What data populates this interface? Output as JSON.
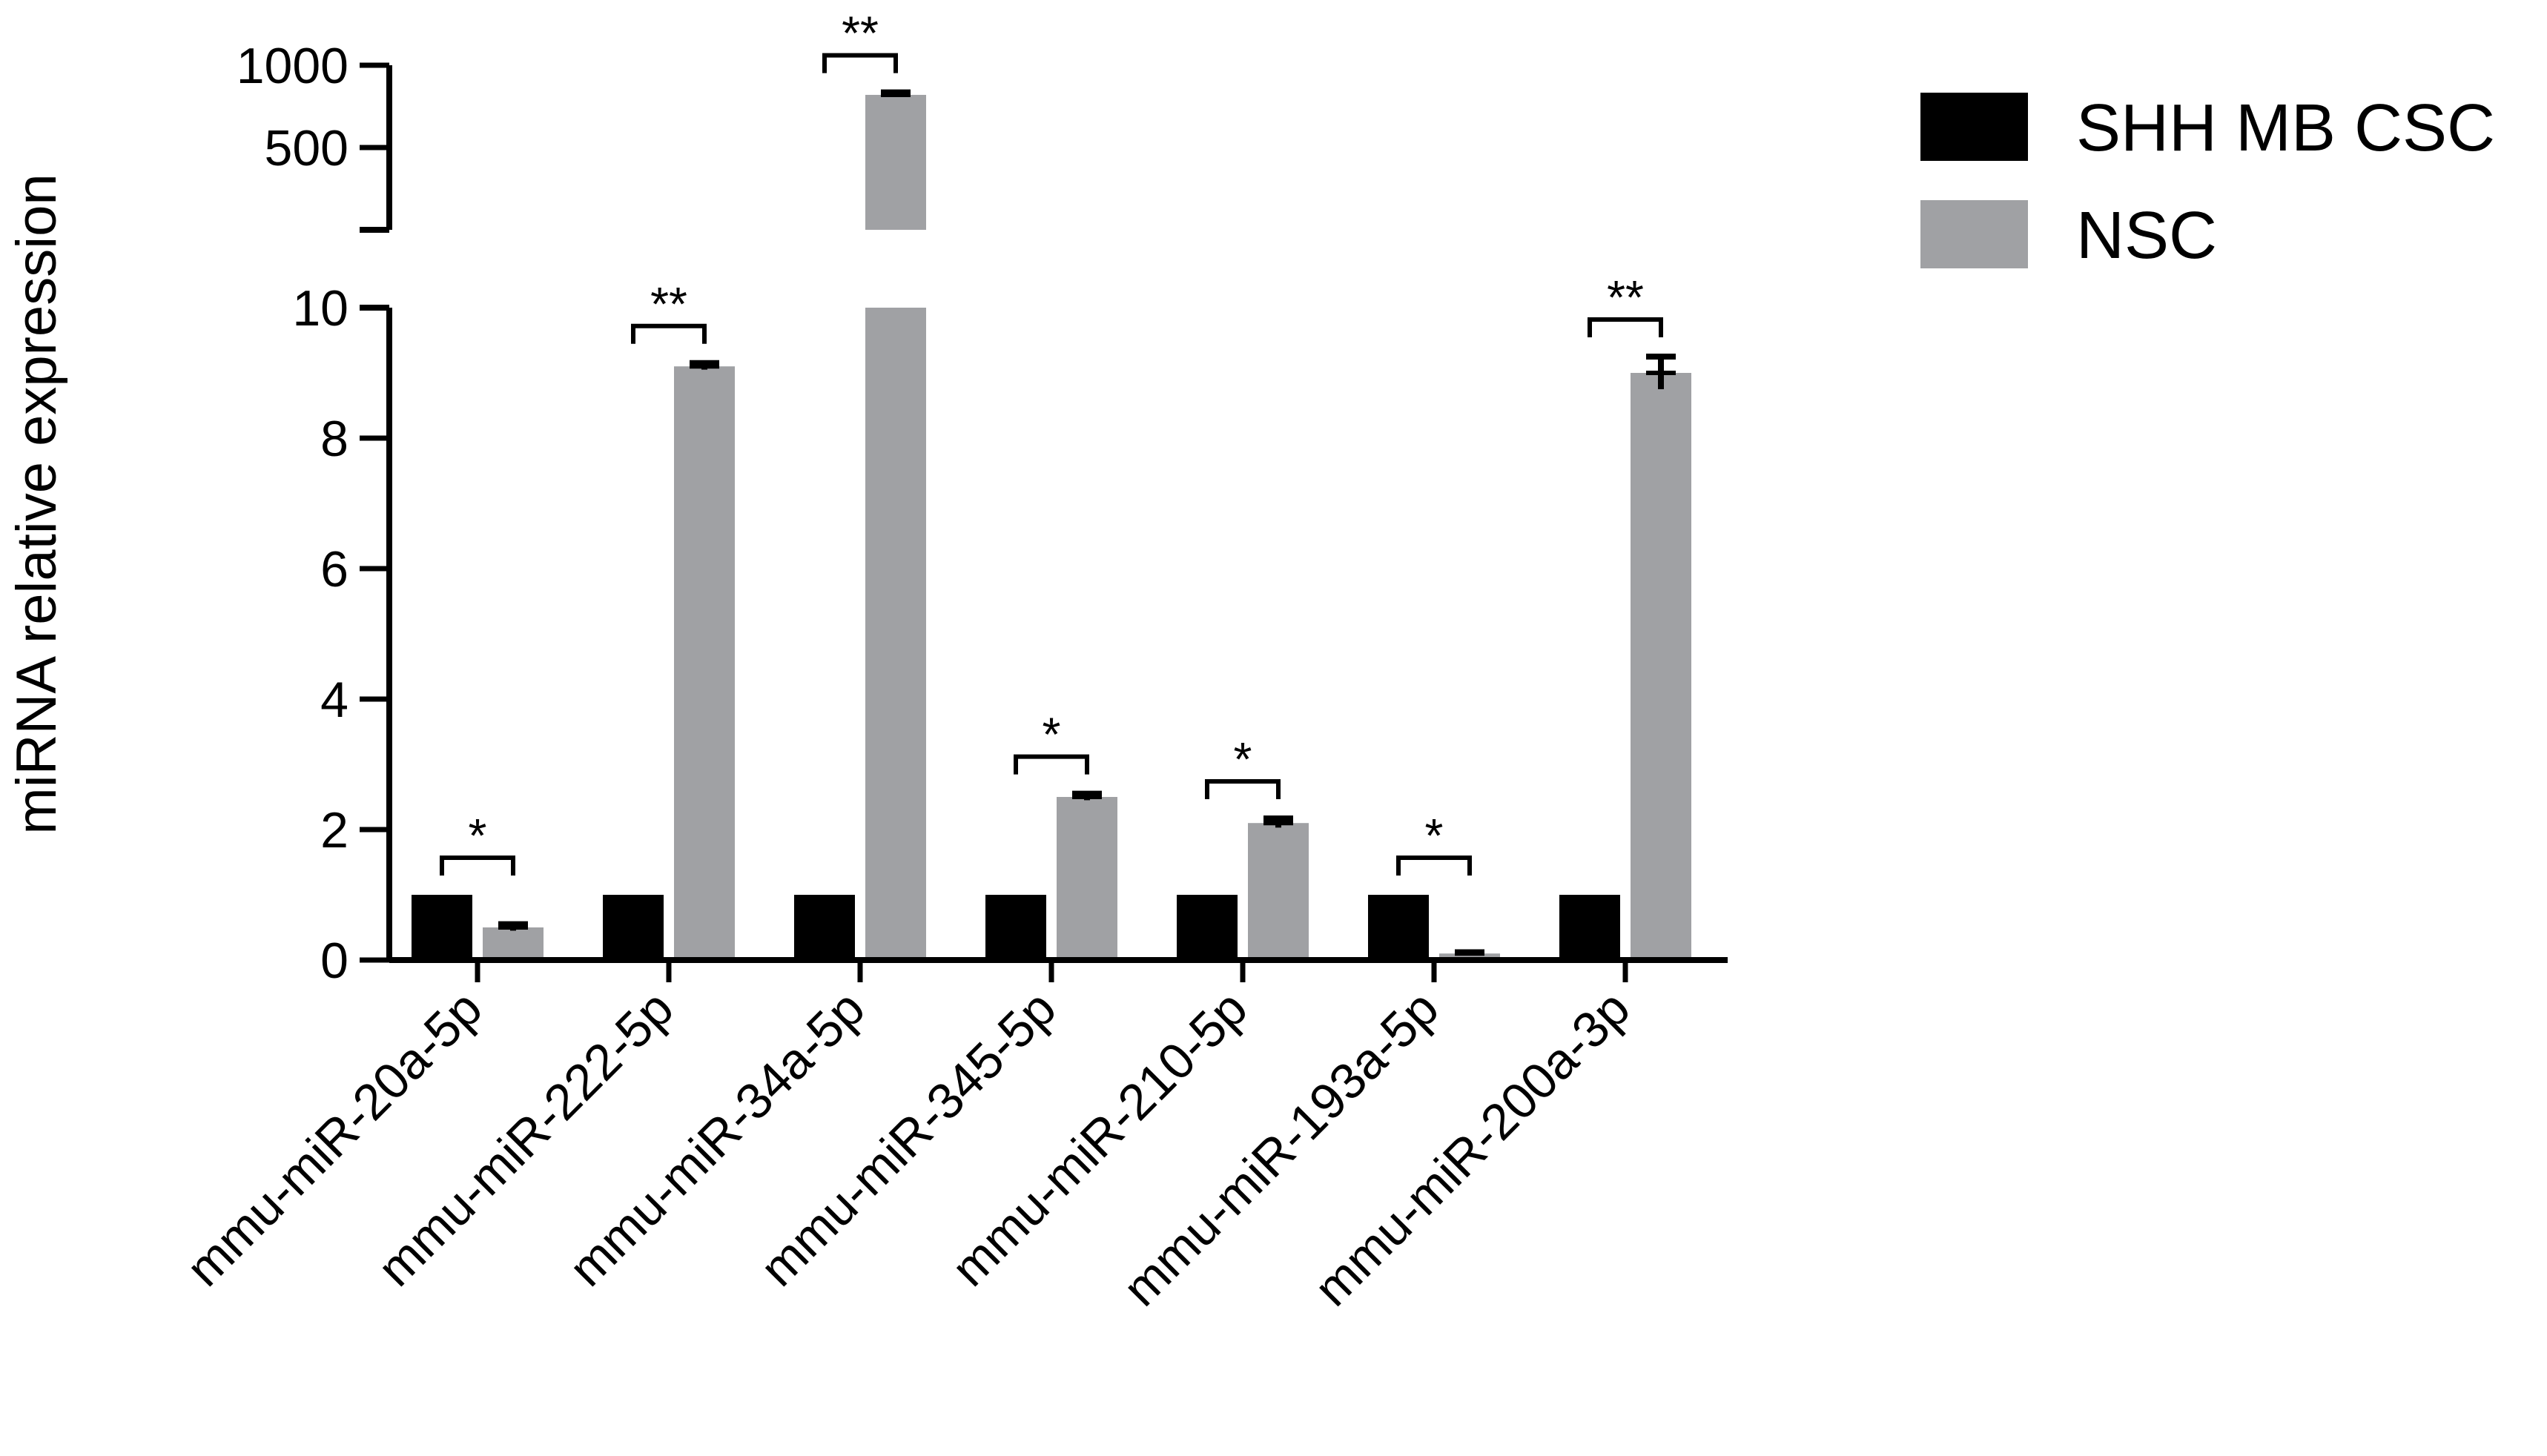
{
  "chart_data": {
    "type": "bar",
    "ylabel": "miRNA relative expression",
    "y_axis_break": true,
    "ylim_lower": [
      0,
      10
    ],
    "ylim_upper": [
      0,
      1000
    ],
    "lower_ticks": [
      "0",
      "2",
      "4",
      "6",
      "8",
      "10"
    ],
    "upper_ticks": [
      "500",
      "1000"
    ],
    "categories": [
      "mmu-miR-20a-5p",
      "mmu-miR-222-5p",
      "mmu-miR-34a-5p",
      "mmu-miR-345-5p",
      "mmu-miR-210-5p",
      "mmu-miR-193a-5p",
      "mmu-miR-200a-3p"
    ],
    "series": [
      {
        "name": "SHH MB CSC",
        "color": "#000000",
        "values": [
          1,
          1,
          1,
          1,
          1,
          1,
          1
        ],
        "errors": [
          0,
          0,
          0,
          0,
          0,
          0,
          0
        ]
      },
      {
        "name": "NSC",
        "color": "#a0a1a4",
        "values": [
          0.5,
          9.1,
          820,
          2.5,
          2.1,
          0.1,
          9.0
        ],
        "errors": [
          0.05,
          0.05,
          15,
          0.05,
          0.07,
          0.02,
          0.25
        ]
      }
    ],
    "significance": [
      "*",
      "**",
      "**",
      "*",
      "*",
      "*",
      "**"
    ],
    "legend_position": "top-right"
  }
}
